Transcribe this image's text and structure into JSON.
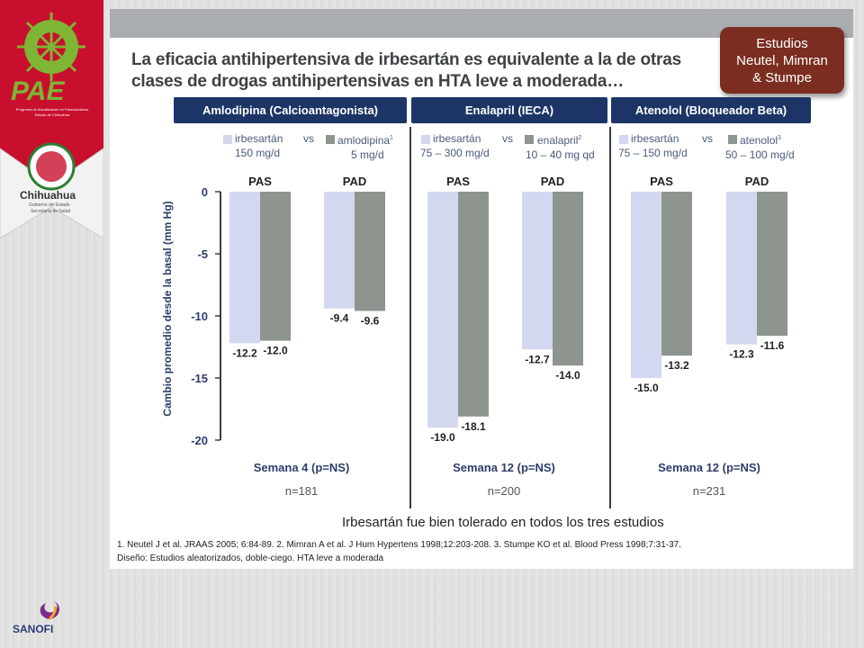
{
  "title_lines": [
    "La eficacia antihipertensiva de irbesartán es equivalente a la de otras",
    "clases de drogas antihipertensivas en HTA leve a moderada…"
  ],
  "badge": [
    "Estudios",
    "Neutel, Mimran",
    "& Stumpe"
  ],
  "logo": {
    "name": "PAE",
    "org_line1": "Programa de Actualización en Farmacéuticos",
    "org_line2": "Estado de Chihuahua",
    "state": "Chihuahua",
    "state_sub1": "Gobierno del Estado",
    "state_sub2": "Secretaría de Salud"
  },
  "sanofi": "SANOFI",
  "colors": {
    "irbesartan": "#d4d7f0",
    "comparator": "#8d958e",
    "header": "#1d3566",
    "badge": "#7a2d20",
    "accent_red": "#c8102e"
  },
  "y_axis_label": "Cambio promedio desde la basal (mm Hg)",
  "footer_note": "Irbesartán fue bien tolerado en todos los tres estudios",
  "references": "1. Neutel J et al. JRAAS 2005; 6:84-89.   2. Mimran A et al. J Hum Hypertens 1998;12:203-208.   3. Stumpe KO et al. Blood Press 1998;7:31-37.",
  "design": "Diseño: Estudios aleatorizados, doble-ciego. HTA leve a moderada",
  "panels": [
    {
      "header": "Amlodipina (Calcioantagonista)",
      "legend_a": "irbesartán",
      "legend_a_dose": "150 mg/d",
      "vs": "vs",
      "legend_b": "amlodipina",
      "legend_b_sup": "1",
      "legend_b_dose": "5 mg/d",
      "week": "Semana 4 (p=NS)",
      "n": "n=181"
    },
    {
      "header": "Enalapril (IECA)",
      "legend_a": "irbesartán",
      "legend_a_dose": "75 – 300 mg/d",
      "vs": "vs",
      "legend_b": "enalapril",
      "legend_b_sup": "2",
      "legend_b_dose": "10 – 40 mg qd",
      "week": "Semana 12 (p=NS)",
      "n": "n=200"
    },
    {
      "header": "Atenolol (Bloqueador Beta)",
      "legend_a": "irbesartán",
      "legend_a_dose": "75 – 150 mg/d",
      "vs": "vs",
      "legend_b": "atenolol",
      "legend_b_sup": "3",
      "legend_b_dose": "50 – 100 mg/d",
      "week": "Semana 12 (p=NS)",
      "n": "n=231"
    }
  ],
  "chart_data": {
    "type": "bar",
    "ylim": [
      -20,
      0
    ],
    "yticks": [
      0,
      -5,
      -10,
      -15,
      -20
    ],
    "ylabel": "Cambio promedio desde la basal (mm Hg)",
    "groups": [
      {
        "panel": 0,
        "category": "PAS",
        "irbesartan": -12.2,
        "comparator": -12.0
      },
      {
        "panel": 0,
        "category": "PAD",
        "irbesartan": -9.4,
        "comparator": -9.6
      },
      {
        "panel": 1,
        "category": "PAS",
        "irbesartan": -19.0,
        "comparator": -18.1
      },
      {
        "panel": 1,
        "category": "PAD",
        "irbesartan": -12.7,
        "comparator": -14.0
      },
      {
        "panel": 2,
        "category": "PAS",
        "irbesartan": -15.0,
        "comparator": -13.2
      },
      {
        "panel": 2,
        "category": "PAD",
        "irbesartan": -12.3,
        "comparator": -11.6
      }
    ],
    "labels": [
      "-12.2",
      "-12.0",
      "-9.4",
      "-9.6",
      "-19.0",
      "-18.1",
      "-12.7",
      "-14.0",
      "-15.0",
      "-13.2",
      "-12.3",
      "-11.6"
    ]
  }
}
